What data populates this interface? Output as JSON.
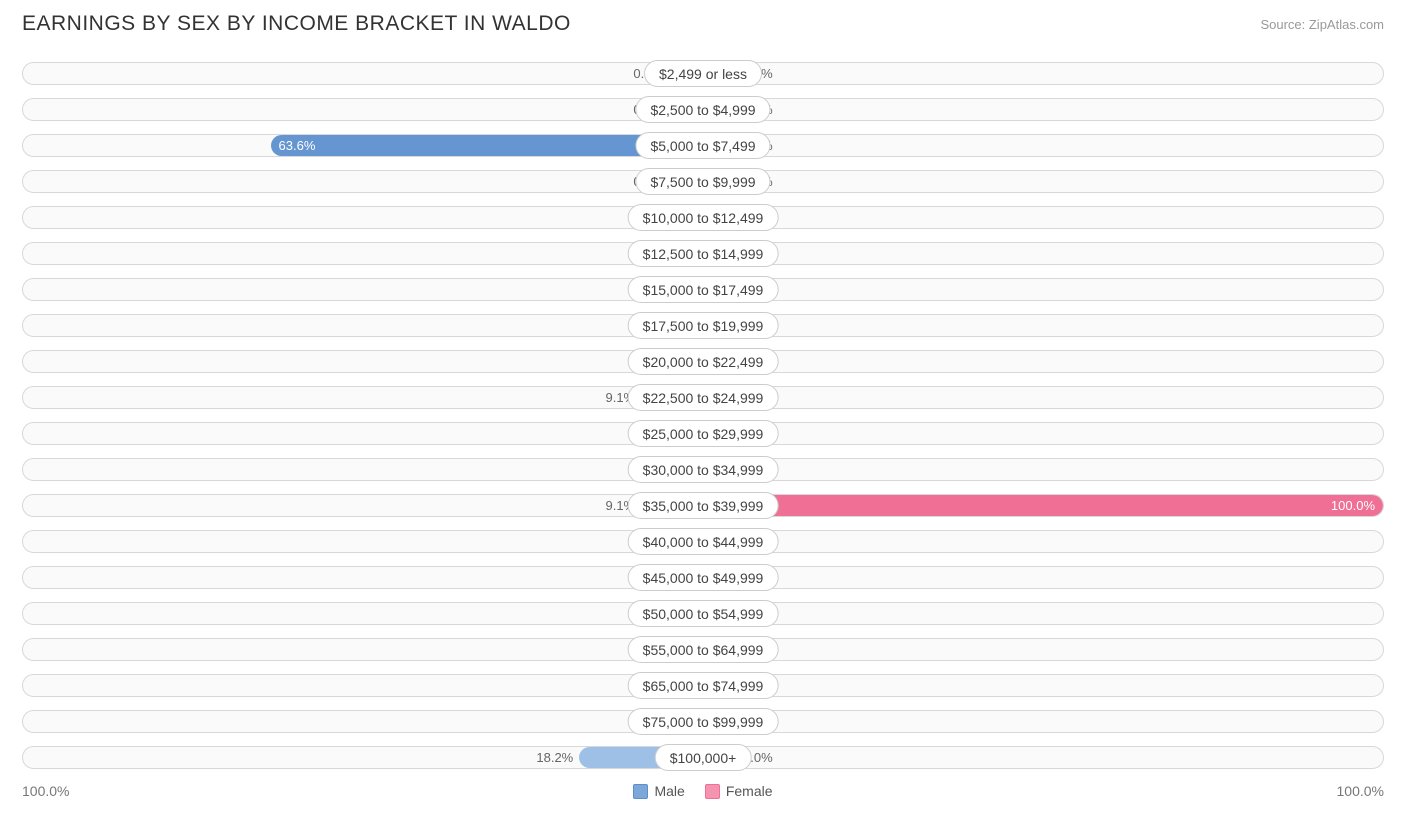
{
  "title": "EARNINGS BY SEX BY INCOME BRACKET IN WALDO",
  "source": "Source: ZipAtlas.com",
  "axis_left_label": "100.0%",
  "axis_right_label": "100.0%",
  "legend": {
    "male": {
      "label": "Male",
      "color": "#7ba7d9",
      "border": "#5d90c9"
    },
    "female": {
      "label": "Female",
      "color": "#f494b1",
      "border": "#ef6f95"
    }
  },
  "chart": {
    "type": "diverging-bar",
    "track_bg": "#fafafa",
    "track_border": "#d8d8d8",
    "male_light": "#9ec0e6",
    "male_strong": "#6596d2",
    "female_light": "#f7b3c6",
    "female_strong": "#ef6f95",
    "min_visible_pct": 5.0,
    "on_bar_threshold": 30,
    "rows": [
      {
        "category": "$2,499 or less",
        "male": 0.0,
        "female": 0.0
      },
      {
        "category": "$2,500 to $4,999",
        "male": 0.0,
        "female": 0.0
      },
      {
        "category": "$5,000 to $7,499",
        "male": 63.6,
        "female": 0.0
      },
      {
        "category": "$7,500 to $9,999",
        "male": 0.0,
        "female": 0.0
      },
      {
        "category": "$10,000 to $12,499",
        "male": 0.0,
        "female": 0.0
      },
      {
        "category": "$12,500 to $14,999",
        "male": 0.0,
        "female": 0.0
      },
      {
        "category": "$15,000 to $17,499",
        "male": 0.0,
        "female": 0.0
      },
      {
        "category": "$17,500 to $19,999",
        "male": 0.0,
        "female": 0.0
      },
      {
        "category": "$20,000 to $22,499",
        "male": 0.0,
        "female": 0.0
      },
      {
        "category": "$22,500 to $24,999",
        "male": 9.1,
        "female": 0.0
      },
      {
        "category": "$25,000 to $29,999",
        "male": 0.0,
        "female": 0.0
      },
      {
        "category": "$30,000 to $34,999",
        "male": 0.0,
        "female": 0.0
      },
      {
        "category": "$35,000 to $39,999",
        "male": 9.1,
        "female": 100.0
      },
      {
        "category": "$40,000 to $44,999",
        "male": 0.0,
        "female": 0.0
      },
      {
        "category": "$45,000 to $49,999",
        "male": 0.0,
        "female": 0.0
      },
      {
        "category": "$50,000 to $54,999",
        "male": 0.0,
        "female": 0.0
      },
      {
        "category": "$55,000 to $64,999",
        "male": 0.0,
        "female": 0.0
      },
      {
        "category": "$65,000 to $74,999",
        "male": 0.0,
        "female": 0.0
      },
      {
        "category": "$75,000 to $99,999",
        "male": 0.0,
        "female": 0.0
      },
      {
        "category": "$100,000+",
        "male": 18.2,
        "female": 0.0
      }
    ]
  }
}
